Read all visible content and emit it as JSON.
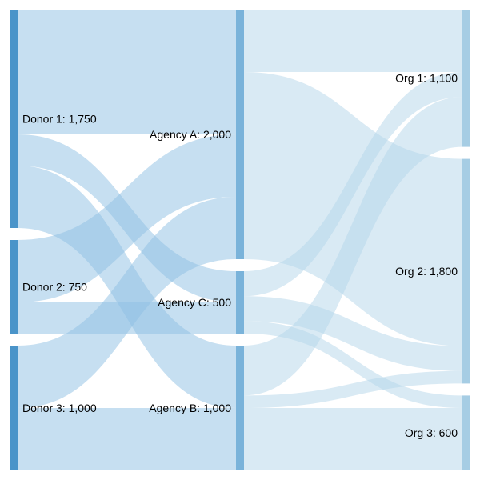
{
  "chart_data": {
    "type": "sankey",
    "columns": [
      [
        {
          "id": "d1",
          "label": "Donor 1: 1,750",
          "value": 1750
        },
        {
          "id": "d2",
          "label": "Donor 2: 750",
          "value": 750
        },
        {
          "id": "d3",
          "label": "Donor 3: 1,000",
          "value": 1000
        }
      ],
      [
        {
          "id": "aA",
          "label": "Agency A: 2,000",
          "value": 2000
        },
        {
          "id": "aC",
          "label": "Agency C: 500",
          "value": 500
        },
        {
          "id": "aB",
          "label": "Agency B: 1,000",
          "value": 1000
        }
      ],
      [
        {
          "id": "o1",
          "label": "Org 1: 1,100",
          "value": 1100
        },
        {
          "id": "o2",
          "label": "Org 2: 1,800",
          "value": 1800
        },
        {
          "id": "o3",
          "label": "Org 3: 600",
          "value": 600
        }
      ]
    ],
    "links": [
      {
        "source": "d1",
        "target": "aA",
        "value": 1000
      },
      {
        "source": "d1",
        "target": "aC",
        "value": 250
      },
      {
        "source": "d1",
        "target": "aB",
        "value": 500
      },
      {
        "source": "d2",
        "target": "aA",
        "value": 500
      },
      {
        "source": "d2",
        "target": "aC",
        "value": 250
      },
      {
        "source": "d3",
        "target": "aA",
        "value": 500
      },
      {
        "source": "d3",
        "target": "aB",
        "value": 500
      },
      {
        "source": "aA",
        "target": "o1",
        "value": 500
      },
      {
        "source": "aA",
        "target": "o2",
        "value": 1500
      },
      {
        "source": "aC",
        "target": "o1",
        "value": 200
      },
      {
        "source": "aC",
        "target": "o2",
        "value": 200
      },
      {
        "source": "aC",
        "target": "o3",
        "value": 100
      },
      {
        "source": "aB",
        "target": "o1",
        "value": 400
      },
      {
        "source": "aB",
        "target": "o2",
        "value": 100
      },
      {
        "source": "aB",
        "target": "o3",
        "value": 500
      }
    ],
    "colors": {
      "source_node": "#4a94c9",
      "middle_node": "#7ab3da",
      "target_node": "#a6cde4",
      "link_left": "#8ec0e3",
      "link_right": "#b3d6ea"
    }
  }
}
